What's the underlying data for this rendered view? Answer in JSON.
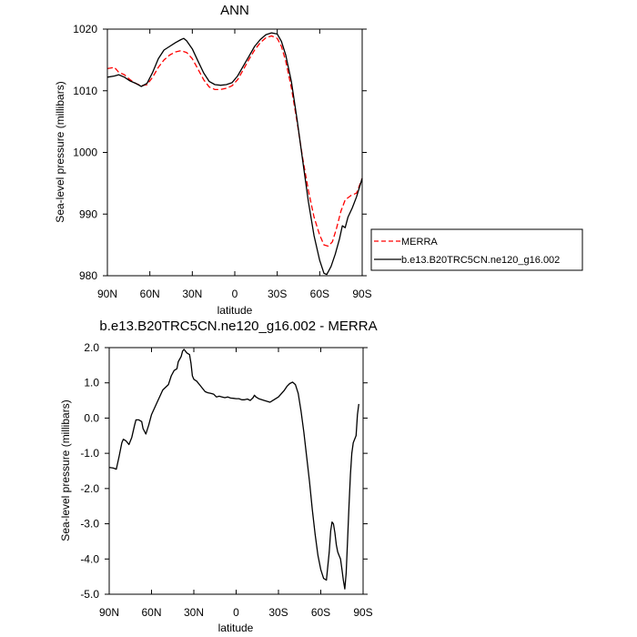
{
  "chart_data": [
    {
      "type": "line",
      "title": "ANN",
      "xlabel": "latitude",
      "ylabel": "Sea-level pressure (millibars)",
      "xlim": [
        90,
        -90
      ],
      "ylim": [
        980,
        1020
      ],
      "x_ticks": [
        90,
        60,
        30,
        0,
        -30,
        -60,
        -90
      ],
      "x_tick_labels": [
        "90N",
        "60N",
        "30N",
        "0",
        "30S",
        "60S",
        "90S"
      ],
      "y_ticks": [
        980,
        990,
        1000,
        1010,
        1020
      ],
      "y_tick_labels": [
        "980",
        "990",
        "1000",
        "1010",
        "1020"
      ],
      "legend_position": "right",
      "series": [
        {
          "name": "MERRA",
          "color": "#ff0000",
          "dash": "dashed",
          "points": [
            [
              90,
              1013.6
            ],
            [
              85,
              1013.8
            ],
            [
              82,
              1013
            ],
            [
              78,
              1012.6
            ],
            [
              74,
              1011.8
            ],
            [
              70,
              1011.2
            ],
            [
              66,
              1010.8
            ],
            [
              62,
              1011
            ],
            [
              58,
              1012.2
            ],
            [
              54,
              1013.8
            ],
            [
              50,
              1015
            ],
            [
              46,
              1015.8
            ],
            [
              42,
              1016.3
            ],
            [
              38,
              1016.5
            ],
            [
              34,
              1016.2
            ],
            [
              30,
              1015.2
            ],
            [
              26,
              1013.5
            ],
            [
              22,
              1011.8
            ],
            [
              18,
              1010.6
            ],
            [
              14,
              1010.2
            ],
            [
              10,
              1010.2
            ],
            [
              6,
              1010.4
            ],
            [
              2,
              1010.8
            ],
            [
              -2,
              1011.8
            ],
            [
              -6,
              1013.4
            ],
            [
              -10,
              1015.1
            ],
            [
              -14,
              1016.6
            ],
            [
              -18,
              1017.8
            ],
            [
              -22,
              1018.6
            ],
            [
              -26,
              1018.9
            ],
            [
              -30,
              1018.5
            ],
            [
              -33,
              1017.2
            ],
            [
              -36,
              1014.8
            ],
            [
              -40,
              1010.5
            ],
            [
              -44,
              1005
            ],
            [
              -48,
              999
            ],
            [
              -52,
              993.8
            ],
            [
              -56,
              989.5
            ],
            [
              -60,
              986.6
            ],
            [
              -63,
              985
            ],
            [
              -66,
              984.8
            ],
            [
              -69,
              985.5
            ],
            [
              -72,
              987.8
            ],
            [
              -75,
              990.5
            ],
            [
              -78,
              992.3
            ],
            [
              -82,
              993
            ],
            [
              -86,
              993.4
            ],
            [
              -90,
              995.8
            ]
          ]
        },
        {
          "name": "b.e13.B20TRC5CN.ne120_g16.002",
          "color": "#000000",
          "dash": "solid",
          "points": [
            [
              90,
              1012.2
            ],
            [
              85,
              1012.4
            ],
            [
              82,
              1012.6
            ],
            [
              78,
              1012.2
            ],
            [
              74,
              1011.6
            ],
            [
              70,
              1011.2
            ],
            [
              66,
              1010.7
            ],
            [
              62,
              1011.2
            ],
            [
              58,
              1013
            ],
            [
              54,
              1015.2
            ],
            [
              50,
              1016.6
            ],
            [
              46,
              1017.2
            ],
            [
              42,
              1017.8
            ],
            [
              38,
              1018.3
            ],
            [
              36,
              1018.5
            ],
            [
              34,
              1018.1
            ],
            [
              30,
              1016.8
            ],
            [
              26,
              1014.8
            ],
            [
              22,
              1012.9
            ],
            [
              18,
              1011.5
            ],
            [
              14,
              1011
            ],
            [
              10,
              1010.9
            ],
            [
              6,
              1011
            ],
            [
              2,
              1011.3
            ],
            [
              -2,
              1012.4
            ],
            [
              -6,
              1014
            ],
            [
              -10,
              1015.6
            ],
            [
              -14,
              1017.2
            ],
            [
              -18,
              1018.3
            ],
            [
              -22,
              1019.1
            ],
            [
              -26,
              1019.4
            ],
            [
              -30,
              1019.2
            ],
            [
              -33,
              1018
            ],
            [
              -36,
              1015.8
            ],
            [
              -40,
              1011.5
            ],
            [
              -44,
              1005.4
            ],
            [
              -48,
              998.6
            ],
            [
              -52,
              992
            ],
            [
              -56,
              986.5
            ],
            [
              -60,
              982.5
            ],
            [
              -63,
              980.4
            ],
            [
              -65,
              980.2
            ],
            [
              -68,
              981.5
            ],
            [
              -71,
              983.5
            ],
            [
              -74,
              986
            ],
            [
              -76,
              988.1
            ],
            [
              -78,
              987.8
            ],
            [
              -80,
              989.5
            ],
            [
              -83,
              991
            ],
            [
              -86,
              992.8
            ],
            [
              -90,
              995.8
            ]
          ]
        }
      ]
    },
    {
      "type": "line",
      "title": "b.e13.B20TRC5CN.ne120_g16.002 - MERRA",
      "xlabel": "latitude",
      "ylabel": "Sea-level pressure (millibars)",
      "xlim": [
        90,
        -90
      ],
      "ylim": [
        -5,
        2
      ],
      "x_ticks": [
        90,
        60,
        30,
        0,
        -30,
        -60,
        -90
      ],
      "x_tick_labels": [
        "90N",
        "60N",
        "30N",
        "0",
        "30S",
        "60S",
        "90S"
      ],
      "y_ticks": [
        -5,
        -4,
        -3,
        -2,
        -1,
        0,
        1,
        2
      ],
      "y_tick_labels": [
        "-5.0",
        "-4.0",
        "-3.0",
        "-2.0",
        "-1.0",
        "0.0",
        "1.0",
        "2.0"
      ],
      "series": [
        {
          "color": "#000000",
          "dash": "solid",
          "points": [
            [
              90,
              -1.4
            ],
            [
              87,
              -1.42
            ],
            [
              85,
              -1.45
            ],
            [
              83,
              -1.1
            ],
            [
              81,
              -0.7
            ],
            [
              80,
              -0.6
            ],
            [
              78,
              -0.65
            ],
            [
              76,
              -0.75
            ],
            [
              74,
              -0.55
            ],
            [
              72,
              -0.2
            ],
            [
              71,
              -0.05
            ],
            [
              69,
              -0.05
            ],
            [
              67,
              -0.1
            ],
            [
              66,
              -0.3
            ],
            [
              64,
              -0.45
            ],
            [
              62,
              -0.2
            ],
            [
              60,
              0.1
            ],
            [
              56,
              0.45
            ],
            [
              52,
              0.8
            ],
            [
              48,
              0.95
            ],
            [
              46,
              1.2
            ],
            [
              44,
              1.35
            ],
            [
              42,
              1.4
            ],
            [
              41,
              1.6
            ],
            [
              39,
              1.75
            ],
            [
              38,
              1.9
            ],
            [
              37,
              1.95
            ],
            [
              35,
              1.85
            ],
            [
              33,
              1.8
            ],
            [
              32,
              1.55
            ],
            [
              31,
              1.2
            ],
            [
              30,
              1.1
            ],
            [
              28,
              1.05
            ],
            [
              26,
              0.95
            ],
            [
              24,
              0.85
            ],
            [
              22,
              0.75
            ],
            [
              20,
              0.72
            ],
            [
              18,
              0.7
            ],
            [
              16,
              0.68
            ],
            [
              14,
              0.6
            ],
            [
              12,
              0.62
            ],
            [
              10,
              0.6
            ],
            [
              8,
              0.58
            ],
            [
              6,
              0.6
            ],
            [
              4,
              0.57
            ],
            [
              2,
              0.56
            ],
            [
              0,
              0.55
            ],
            [
              -2,
              0.55
            ],
            [
              -4,
              0.52
            ],
            [
              -6,
              0.52
            ],
            [
              -8,
              0.54
            ],
            [
              -10,
              0.5
            ],
            [
              -12,
              0.58
            ],
            [
              -13,
              0.65
            ],
            [
              -14,
              0.6
            ],
            [
              -16,
              0.55
            ],
            [
              -20,
              0.5
            ],
            [
              -24,
              0.45
            ],
            [
              -26,
              0.5
            ],
            [
              -30,
              0.6
            ],
            [
              -34,
              0.78
            ],
            [
              -36,
              0.9
            ],
            [
              -38,
              0.98
            ],
            [
              -40,
              1.02
            ],
            [
              -42,
              0.95
            ],
            [
              -44,
              0.7
            ],
            [
              -46,
              0.2
            ],
            [
              -48,
              -0.4
            ],
            [
              -50,
              -1.1
            ],
            [
              -52,
              -1.8
            ],
            [
              -54,
              -2.6
            ],
            [
              -56,
              -3.3
            ],
            [
              -58,
              -3.9
            ],
            [
              -60,
              -4.3
            ],
            [
              -62,
              -4.55
            ],
            [
              -64,
              -4.6
            ],
            [
              -66,
              -3.8
            ],
            [
              -67,
              -3.2
            ],
            [
              -68,
              -2.95
            ],
            [
              -69,
              -3.0
            ],
            [
              -70,
              -3.25
            ],
            [
              -71,
              -3.6
            ],
            [
              -72,
              -3.8
            ],
            [
              -73,
              -3.9
            ],
            [
              -74,
              -4.0
            ],
            [
              -75,
              -4.3
            ],
            [
              -76,
              -4.6
            ],
            [
              -77,
              -4.85
            ],
            [
              -78,
              -4.4
            ],
            [
              -79,
              -3.5
            ],
            [
              -80,
              -2.5
            ],
            [
              -81,
              -1.6
            ],
            [
              -82,
              -1.0
            ],
            [
              -83,
              -0.7
            ],
            [
              -84,
              -0.6
            ],
            [
              -85,
              -0.5
            ],
            [
              -86,
              0.1
            ],
            [
              -87,
              0.4
            ]
          ]
        }
      ]
    }
  ]
}
